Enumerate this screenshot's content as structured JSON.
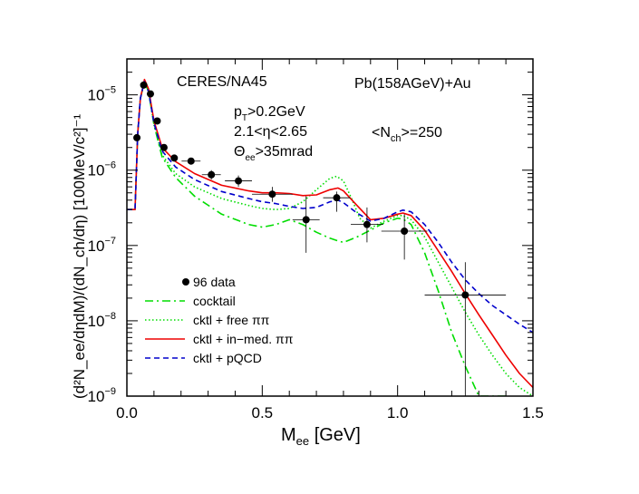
{
  "chart_data": {
    "type": "line",
    "xlabel": {
      "main": "M",
      "sub": "ee",
      "unit": " [GeV]"
    },
    "ylabel": "(d²N_ee/dηdM)/(dN_ch/dη) [100MeV/c²]⁻¹",
    "xlim": [
      0.0,
      1.5
    ],
    "ylim": [
      1e-09,
      3e-05
    ],
    "yscale": "log",
    "x_ticks": [
      0.0,
      0.5,
      1.0,
      1.5
    ],
    "x_tick_labels": [
      "0.0",
      "0.5",
      "1.0",
      "1.5"
    ],
    "y_ticks": [
      1e-09,
      1e-08,
      1e-07,
      1e-06,
      1e-05
    ],
    "y_tick_labels": [
      {
        "base": "10",
        "exp": "−9"
      },
      {
        "base": "10",
        "exp": "−8"
      },
      {
        "base": "10",
        "exp": "−7"
      },
      {
        "base": "10",
        "exp": "−6"
      },
      {
        "base": "10",
        "exp": "−5"
      }
    ],
    "annotations": {
      "experiment": "CERES/NA45",
      "system": "Pb(158AGeV)+Au",
      "pt_cut": {
        "a": "p",
        "sub": "T",
        "b": ">0.2GeV"
      },
      "eta_cut": "2.1<η<2.65",
      "theta_cut": {
        "a": "Θ",
        "sub": "ee",
        "b": ">35mrad"
      },
      "nch": {
        "a": "<N",
        "sub": "ch",
        "b": ">=250"
      }
    },
    "legend": {
      "placement": "bottom-left",
      "entries": [
        {
          "label": "96 data",
          "style": "marker"
        },
        {
          "label": "cocktail",
          "color": "#00dd00",
          "dash": "dashdot"
        },
        {
          "label": "cktl + free ππ",
          "color": "#00dd00",
          "dash": "dotted"
        },
        {
          "label": "cktl + in−med. ππ",
          "color": "#ee0000",
          "dash": "solid"
        },
        {
          "label": "cktl + pQCD",
          "color": "#0000cc",
          "dash": "dashed"
        }
      ]
    },
    "data_points": [
      {
        "x": 0.037,
        "y": 2.7e-06,
        "xerr": 0.0,
        "ylo": 2.7e-06,
        "yhi": 2.7e-06
      },
      {
        "x": 0.062,
        "y": 1.35e-05,
        "xerr": 0.0,
        "ylo": 1.35e-05,
        "yhi": 1.35e-05
      },
      {
        "x": 0.087,
        "y": 1.03e-05,
        "xerr": 0.0,
        "ylo": 1.03e-05,
        "yhi": 1.03e-05
      },
      {
        "x": 0.112,
        "y": 4.5e-06,
        "xerr": 0.0,
        "ylo": 4.5e-06,
        "yhi": 4.5e-06
      },
      {
        "x": 0.137,
        "y": 2e-06,
        "xerr": 0.0,
        "ylo": 2e-06,
        "yhi": 2e-06
      },
      {
        "x": 0.175,
        "y": 1.45e-06,
        "xerr": 0.0,
        "ylo": 1.45e-06,
        "yhi": 1.45e-06
      },
      {
        "x": 0.237,
        "y": 1.32e-06,
        "xerr": 0.035,
        "ylo": 1.32e-06,
        "yhi": 1.32e-06
      },
      {
        "x": 0.312,
        "y": 8.7e-07,
        "xerr": 0.035,
        "ylo": 7.5e-07,
        "yhi": 1e-06
      },
      {
        "x": 0.412,
        "y": 7.2e-07,
        "xerr": 0.05,
        "ylo": 6e-07,
        "yhi": 8.5e-07
      },
      {
        "x": 0.537,
        "y": 4.8e-07,
        "xerr": 0.075,
        "ylo": 3.8e-07,
        "yhi": 6e-07
      },
      {
        "x": 0.662,
        "y": 2.2e-07,
        "xerr": 0.05,
        "ylo": 8e-08,
        "yhi": 4.5e-07
      },
      {
        "x": 0.775,
        "y": 4.3e-07,
        "xerr": 0.05,
        "ylo": 2.8e-07,
        "yhi": 5.2e-07
      },
      {
        "x": 0.887,
        "y": 1.9e-07,
        "xerr": 0.06,
        "ylo": 1.1e-07,
        "yhi": 3.2e-07
      },
      {
        "x": 1.025,
        "y": 1.55e-07,
        "xerr": 0.085,
        "ylo": 6.5e-08,
        "yhi": 2.6e-07
      },
      {
        "x": 1.25,
        "y": 2.2e-08,
        "xerr": 0.15,
        "ylo": 1e-09,
        "yhi": 6e-08
      }
    ],
    "series": [
      {
        "name": "cocktail",
        "color": "#00dd00",
        "dash": "dashdot",
        "x": [
          0.0,
          0.03,
          0.04,
          0.05,
          0.065,
          0.08,
          0.1,
          0.13,
          0.18,
          0.25,
          0.35,
          0.45,
          0.5,
          0.55,
          0.6,
          0.65,
          0.7,
          0.75,
          0.78,
          0.8,
          0.85,
          0.9,
          0.95,
          1.0,
          1.02,
          1.05,
          1.1,
          1.15,
          1.2,
          1.25,
          1.3,
          1.35,
          1.4
        ],
        "y": [
          3e-07,
          3e-07,
          3e-06,
          9e-06,
          1.5e-05,
          1.1e-05,
          4e-06,
          1.5e-06,
          8e-07,
          4.5e-07,
          2.6e-07,
          1.9e-07,
          1.75e-07,
          1.9e-07,
          2.2e-07,
          1.9e-07,
          1.5e-07,
          1.25e-07,
          1.15e-07,
          1.1e-07,
          1.3e-07,
          1.6e-07,
          2e-07,
          2.3e-07,
          2.25e-07,
          1.9e-07,
          8e-08,
          2.5e-08,
          7e-09,
          2.5e-09,
          1e-09,
          1e-09,
          1e-09
        ]
      },
      {
        "name": "cktl + free ππ",
        "color": "#00dd00",
        "dash": "dotted",
        "x": [
          0.0,
          0.03,
          0.04,
          0.05,
          0.065,
          0.08,
          0.1,
          0.13,
          0.18,
          0.25,
          0.35,
          0.45,
          0.5,
          0.55,
          0.6,
          0.65,
          0.7,
          0.75,
          0.775,
          0.8,
          0.83,
          0.86,
          0.9,
          0.95,
          1.0,
          1.02,
          1.05,
          1.1,
          1.15,
          1.2,
          1.25,
          1.3,
          1.35,
          1.4,
          1.45,
          1.5
        ],
        "y": [
          3e-07,
          3e-07,
          3e-06,
          9e-06,
          1.5e-05,
          1.1e-05,
          4e-06,
          1.6e-06,
          9e-07,
          6e-07,
          4.2e-07,
          3.4e-07,
          3.1e-07,
          3e-07,
          3.1e-07,
          3.8e-07,
          5.5e-07,
          7.8e-07,
          8.3e-07,
          7.2e-07,
          4.2e-07,
          2.3e-07,
          1.7e-07,
          2.1e-07,
          2.5e-07,
          2.5e-07,
          2.2e-07,
          1.3e-07,
          6e-08,
          2.8e-08,
          1.3e-08,
          6.5e-09,
          3.5e-09,
          2e-09,
          1.3e-09,
          1e-09
        ]
      },
      {
        "name": "cktl + in−med. ππ",
        "color": "#ee0000",
        "dash": "solid",
        "x": [
          0.0,
          0.03,
          0.04,
          0.05,
          0.065,
          0.08,
          0.1,
          0.13,
          0.18,
          0.25,
          0.35,
          0.45,
          0.5,
          0.55,
          0.6,
          0.65,
          0.7,
          0.75,
          0.78,
          0.8,
          0.85,
          0.9,
          0.95,
          1.0,
          1.02,
          1.05,
          1.1,
          1.15,
          1.2,
          1.25,
          1.3,
          1.35,
          1.4,
          1.45,
          1.5
        ],
        "y": [
          3e-07,
          3e-07,
          3e-06,
          9e-06,
          1.6e-05,
          1.2e-05,
          4.5e-06,
          2e-06,
          1.3e-06,
          9e-07,
          6.3e-07,
          5.3e-07,
          5e-07,
          5e-07,
          4.9e-07,
          4.6e-07,
          4.7e-07,
          5.5e-07,
          5.8e-07,
          5.3e-07,
          3.4e-07,
          2.2e-07,
          2.3e-07,
          2.6e-07,
          2.7e-07,
          2.5e-07,
          1.6e-07,
          8.5e-08,
          4.5e-08,
          2.3e-08,
          1.2e-08,
          6.5e-09,
          3.5e-09,
          2e-09,
          1.3e-09
        ]
      },
      {
        "name": "cktl + pQCD",
        "color": "#0000cc",
        "dash": "dashed",
        "x": [
          0.0,
          0.03,
          0.04,
          0.05,
          0.065,
          0.08,
          0.1,
          0.13,
          0.18,
          0.25,
          0.35,
          0.45,
          0.5,
          0.55,
          0.6,
          0.65,
          0.7,
          0.75,
          0.78,
          0.8,
          0.85,
          0.9,
          0.95,
          1.0,
          1.02,
          1.05,
          1.1,
          1.15,
          1.2,
          1.25,
          1.3,
          1.35,
          1.4,
          1.45,
          1.5
        ],
        "y": [
          3e-07,
          3e-07,
          3e-06,
          9e-06,
          1.5e-05,
          1.1e-05,
          4.2e-06,
          1.8e-06,
          1.1e-06,
          7.5e-07,
          5.2e-07,
          4.2e-07,
          3.8e-07,
          3.6e-07,
          3.3e-07,
          3.1e-07,
          3.2e-07,
          3.8e-07,
          4e-07,
          3.7e-07,
          2.7e-07,
          2.1e-07,
          2.3e-07,
          2.8e-07,
          2.95e-07,
          2.8e-07,
          1.9e-07,
          1.1e-07,
          6e-08,
          3.5e-08,
          2.3e-08,
          1.6e-08,
          1.2e-08,
          9e-09,
          7e-09
        ]
      }
    ]
  }
}
